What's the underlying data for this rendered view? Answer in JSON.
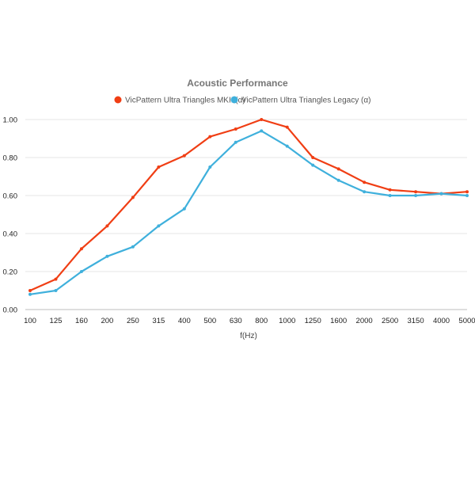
{
  "chart_data": {
    "type": "line",
    "title": "Acoustic Performance",
    "xlabel": "f(Hz)",
    "ylabel": "",
    "categories": [
      "100",
      "125",
      "160",
      "200",
      "250",
      "315",
      "400",
      "500",
      "630",
      "800",
      "1000",
      "1250",
      "1600",
      "2000",
      "2500",
      "3150",
      "4000",
      "5000"
    ],
    "ylim": [
      0,
      1.0
    ],
    "yticks": [
      "0.00",
      "0.20",
      "0.40",
      "0.60",
      "0.80",
      "1.00"
    ],
    "grid": true,
    "legend_position": "top",
    "series": [
      {
        "name": "VicPattern Ultra Triangles MKII (α)",
        "color": "#f03e14",
        "values": [
          0.1,
          0.16,
          0.32,
          0.44,
          0.59,
          0.75,
          0.81,
          0.91,
          0.95,
          1.0,
          0.96,
          0.8,
          0.74,
          0.67,
          0.63,
          0.62,
          0.61,
          0.62
        ]
      },
      {
        "name": "VicPattern Ultra Triangles Legacy (α)",
        "color": "#3fb0dc",
        "values": [
          0.08,
          0.1,
          0.2,
          0.28,
          0.33,
          0.44,
          0.53,
          0.75,
          0.88,
          0.94,
          0.86,
          0.76,
          0.68,
          0.62,
          0.6,
          0.6,
          0.61,
          0.6
        ]
      }
    ]
  }
}
